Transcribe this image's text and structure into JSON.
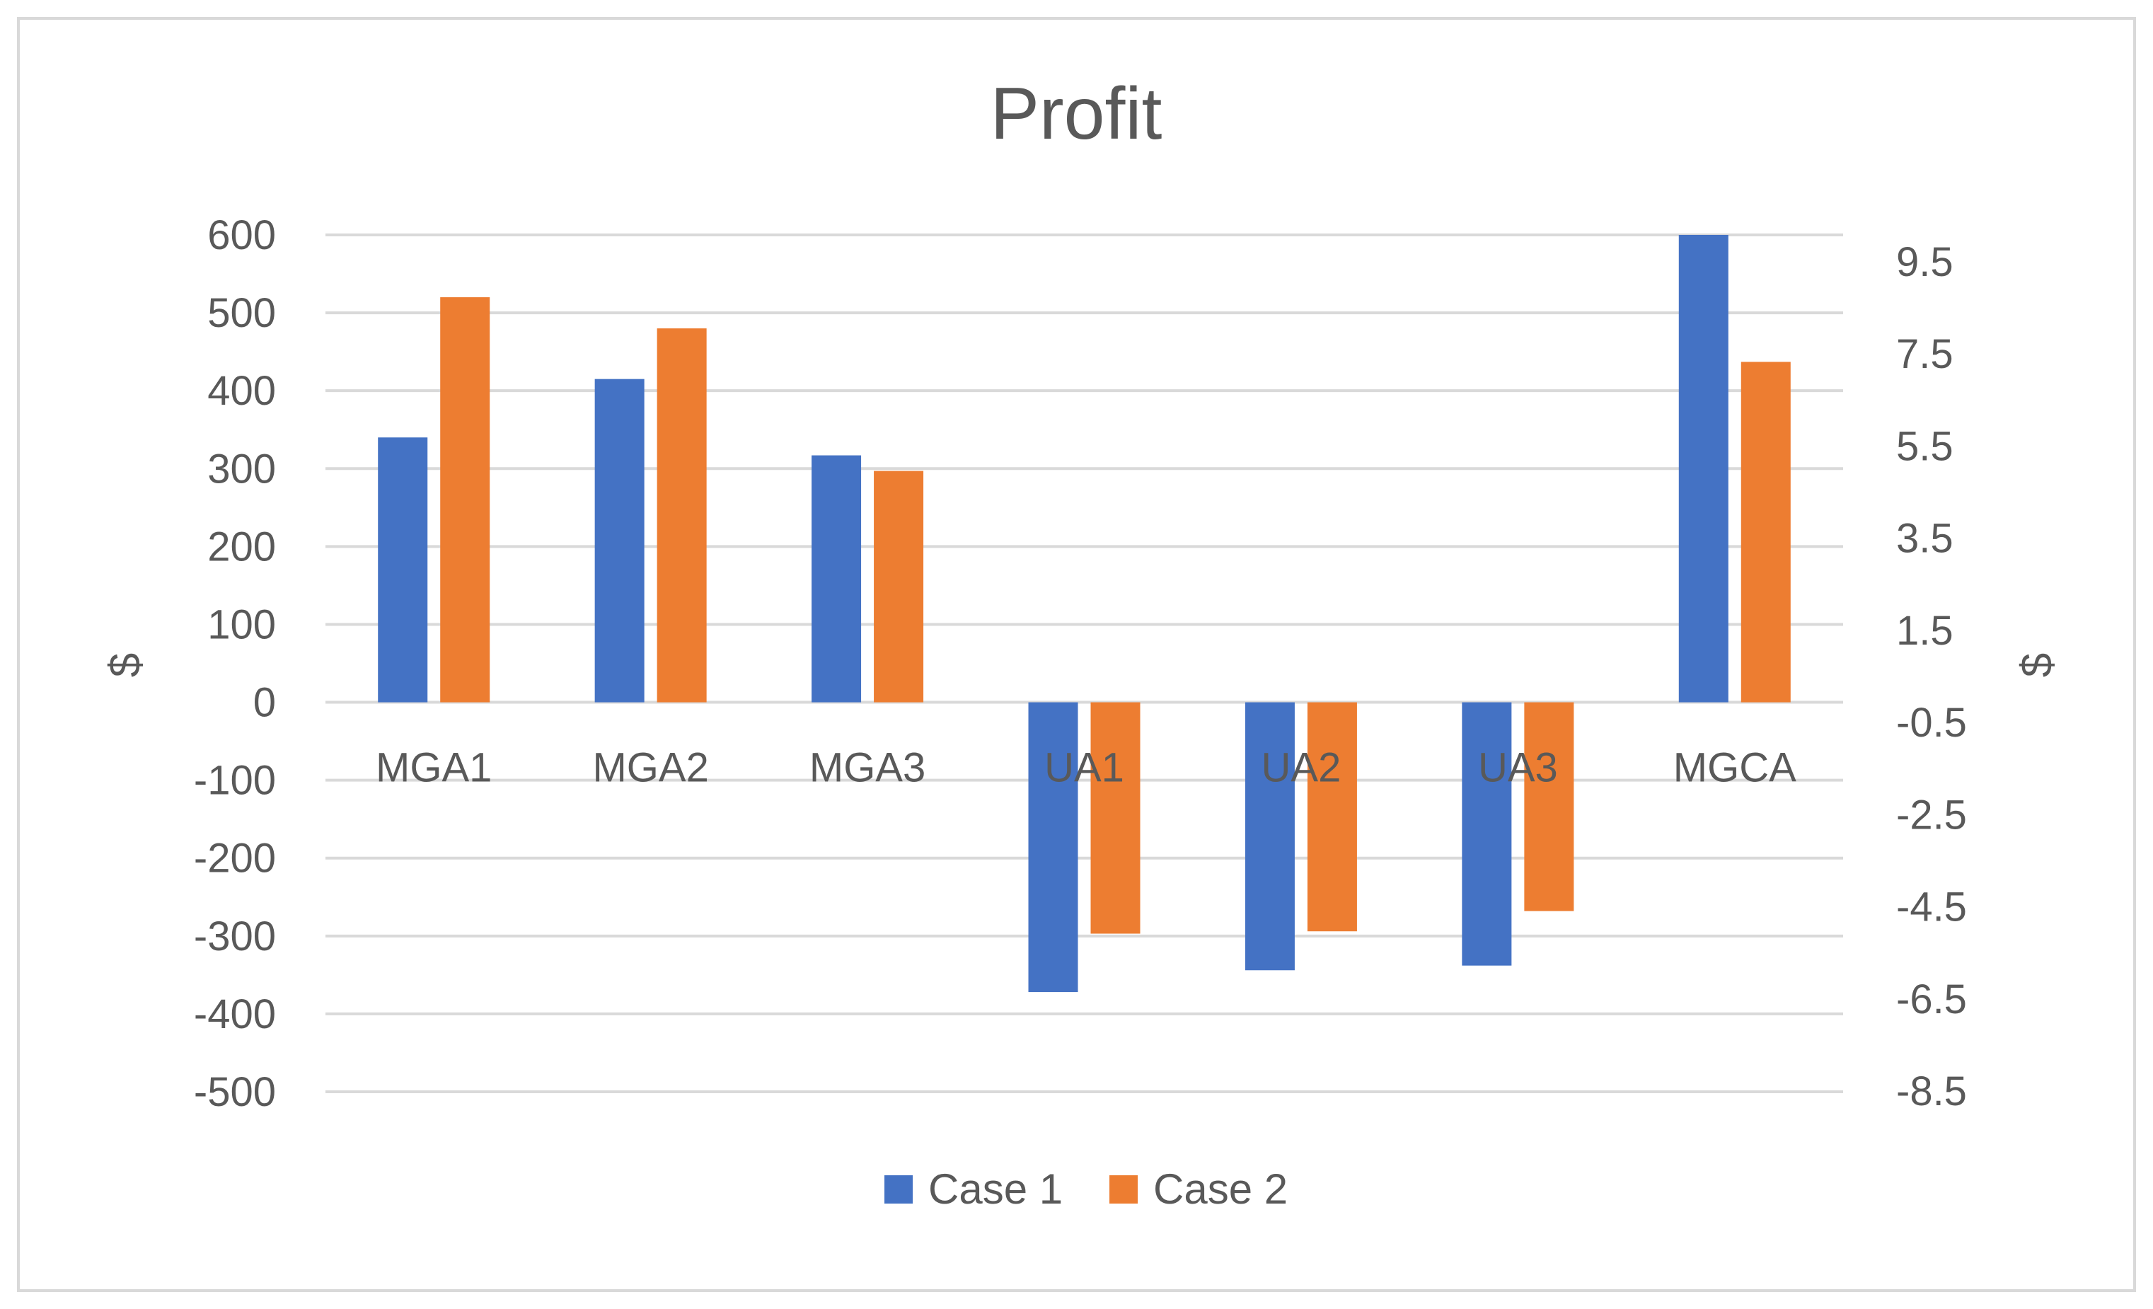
{
  "chart_data": {
    "type": "bar",
    "title": "Profit",
    "categories": [
      "MGA1",
      "MGA2",
      "MGA3",
      "UA1",
      "UA2",
      "UA3",
      "MGCA"
    ],
    "series": [
      {
        "name": "Case 1",
        "color": "#4472C4",
        "values": [
          340,
          415,
          317,
          -372,
          -344,
          -338,
          600
        ]
      },
      {
        "name": "Case 2",
        "color": "#ED7D31",
        "values": [
          520,
          480,
          297,
          -297,
          -294,
          -268,
          437
        ]
      }
    ],
    "ylabel": "$",
    "y2label": "$",
    "ylim": [
      -500,
      600
    ],
    "yticks": [
      600,
      500,
      400,
      300,
      200,
      100,
      0,
      -100,
      -200,
      -300,
      -400,
      -500
    ],
    "y2ticks": [
      "9.5",
      "7.5",
      "5.5",
      "3.5",
      "1.5",
      "-0.5",
      "-2.5",
      "-4.5",
      "-6.5",
      "-8.5"
    ],
    "legend_position": "bottom",
    "grid": true
  }
}
